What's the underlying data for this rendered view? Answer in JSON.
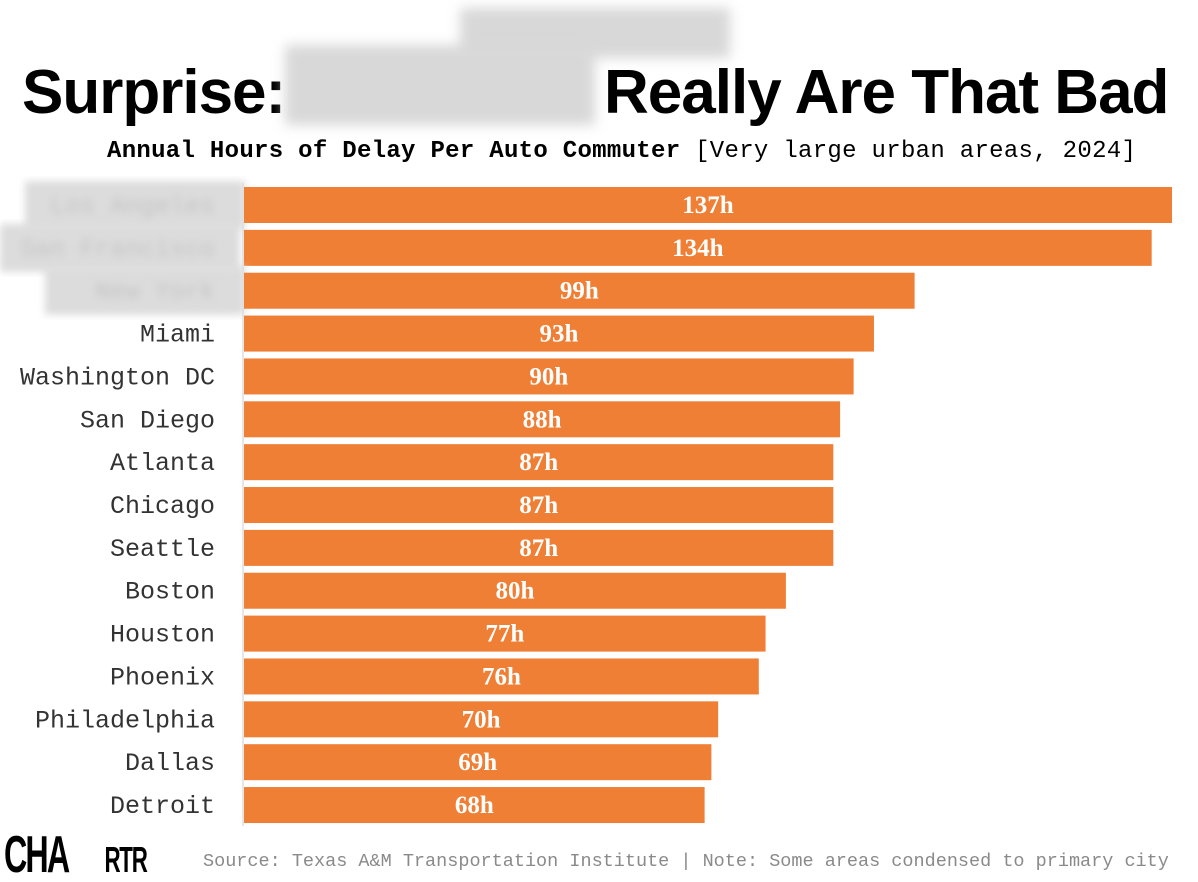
{
  "title": {
    "left": "Surprise:",
    "right": "Really Are That Bad"
  },
  "subtitle": {
    "main": "Annual Hours of Delay Per Auto Commuter",
    "bracket": "[Very large urban areas, 2024]"
  },
  "colors": {
    "bar": "#ef7f35",
    "label": "#333333",
    "value": "#ffffff",
    "axis": "#dddddd"
  },
  "chart_data": {
    "type": "bar",
    "orientation": "horizontal",
    "title": "Annual Hours of Delay Per Auto Commuter",
    "subtitle": "[Very large urban areas, 2024]",
    "categories": [
      "Los Angeles",
      "San Francisco",
      "New York",
      "Miami",
      "Washington DC",
      "San Diego",
      "Atlanta",
      "Chicago",
      "Seattle",
      "Boston",
      "Houston",
      "Phoenix",
      "Philadelphia",
      "Dallas",
      "Detroit"
    ],
    "blurred_categories": [
      "Los Angeles",
      "San Francisco",
      "New York"
    ],
    "values": [
      137,
      134,
      99,
      93,
      90,
      88,
      87,
      87,
      87,
      80,
      77,
      76,
      70,
      69,
      68
    ],
    "value_suffix": "h",
    "xlim": [
      0,
      137
    ],
    "grid": false,
    "legend": "none"
  },
  "footer": {
    "source": "Source: Texas A&M Transportation Institute | Note: Some areas condensed to primary city",
    "logo": "CHARTR"
  }
}
